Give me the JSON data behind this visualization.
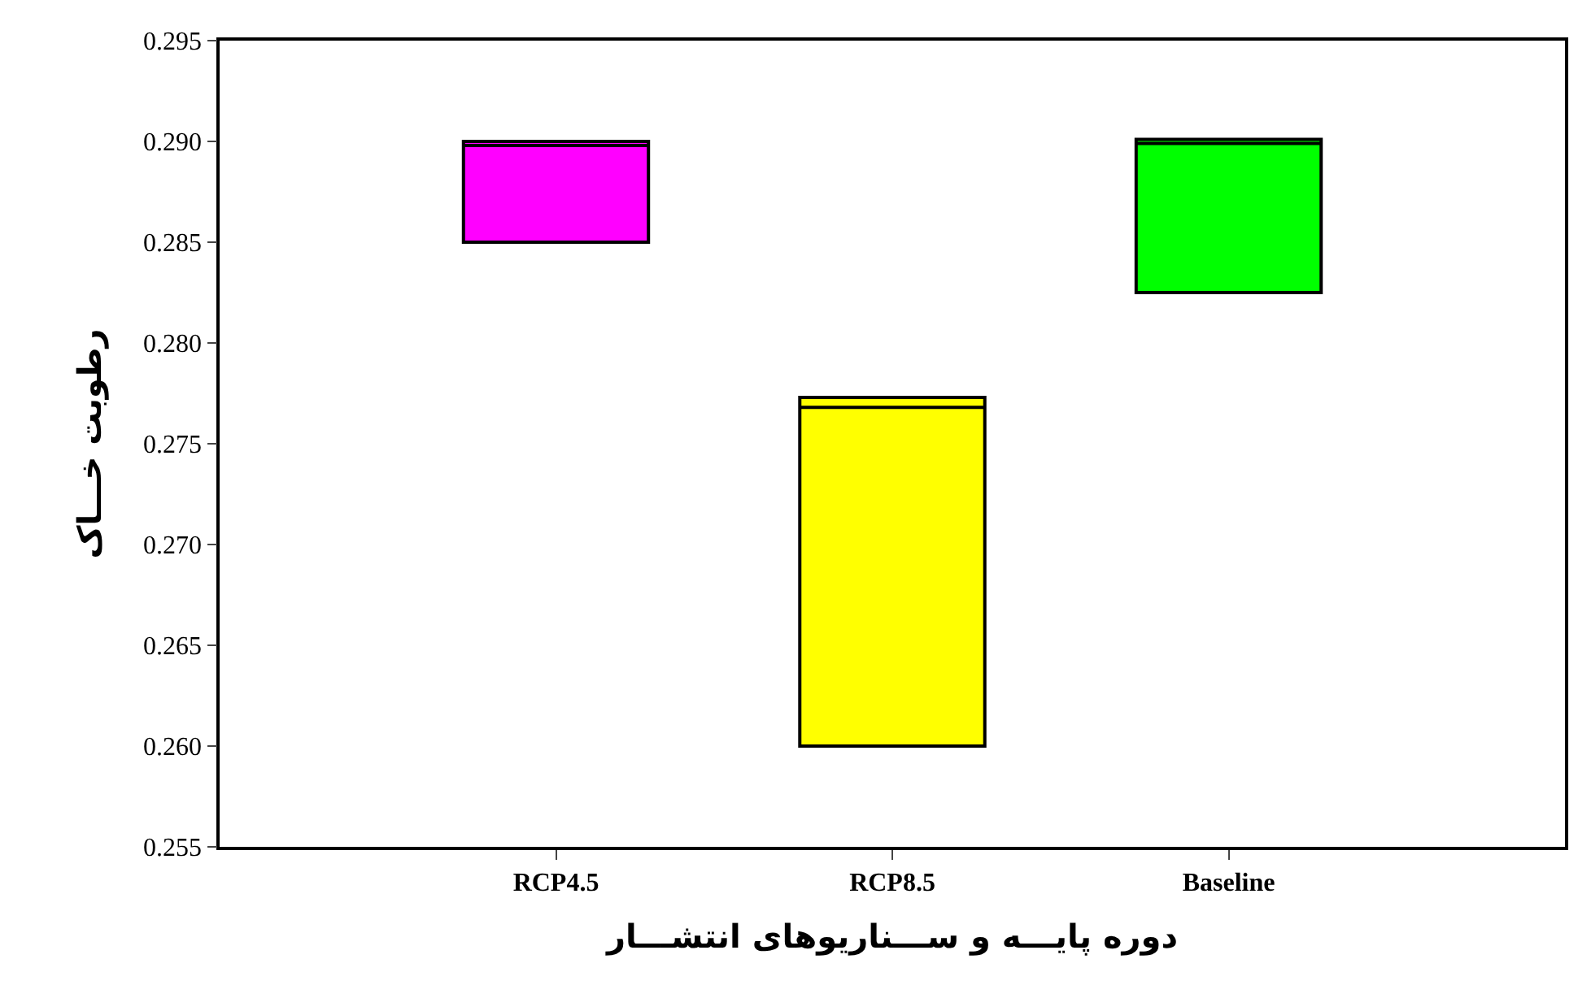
{
  "chart_data": {
    "type": "box",
    "xlabel": "دوره پایـــه و ســـناریوهای انتشـــار",
    "ylabel": "رطوبت خـــاک",
    "categories": [
      "RCP4.5",
      "RCP8.5",
      "Baseline"
    ],
    "colors": [
      "#ff00ff",
      "#ffff00",
      "#00ff00"
    ],
    "boxes": [
      {
        "q1": 0.285,
        "median": 0.2898,
        "q3": 0.29
      },
      {
        "q1": 0.26,
        "median": 0.2768,
        "q3": 0.2773
      },
      {
        "q1": 0.2825,
        "median": 0.2899,
        "q3": 0.2901
      }
    ],
    "ylim": [
      0.255,
      0.295
    ],
    "yticks": [
      {
        "value": 0.255,
        "label": "0.255"
      },
      {
        "value": 0.26,
        "label": "0.260"
      },
      {
        "value": 0.265,
        "label": "0.265"
      },
      {
        "value": 0.27,
        "label": "0.270"
      },
      {
        "value": 0.275,
        "label": "0.275"
      },
      {
        "value": 0.28,
        "label": "0.280"
      },
      {
        "value": 0.285,
        "label": "0.285"
      },
      {
        "value": 0.29,
        "label": "0.290"
      },
      {
        "value": 0.295,
        "label": "0.295"
      }
    ],
    "grid": false,
    "legend": false
  }
}
